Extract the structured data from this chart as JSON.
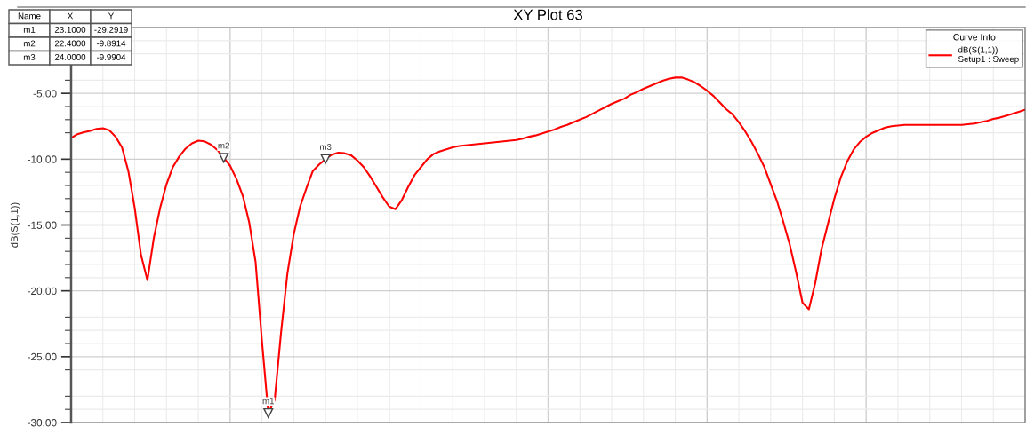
{
  "chart_data": {
    "type": "line",
    "title": "XY Plot 63",
    "ylabel": "dB(S(1,1))",
    "legend_title": "Curve Info",
    "categories": [
      null,
      null,
      null,
      null,
      null,
      null,
      null,
      null,
      null,
      null,
      null,
      null,
      null,
      null,
      null,
      null,
      null,
      null,
      null,
      null,
      null,
      null,
      null,
      null,
      null,
      null,
      null,
      null,
      null,
      null,
      null,
      null,
      null,
      null,
      null,
      null,
      null,
      null,
      null,
      null,
      null,
      null,
      null,
      null,
      null,
      null,
      null,
      null,
      null,
      null,
      null,
      null,
      null,
      null,
      null,
      null,
      null,
      null,
      null,
      null,
      null,
      null,
      null,
      null,
      null,
      null,
      null,
      null,
      null,
      null,
      null,
      null,
      null,
      null,
      null,
      null,
      null,
      null,
      null,
      null,
      null,
      null,
      null,
      null,
      null,
      null,
      null,
      null,
      null,
      null,
      null,
      null,
      null,
      null,
      null,
      null,
      null,
      null,
      null,
      null,
      null,
      null,
      null,
      null,
      null,
      null,
      null,
      null,
      null,
      null,
      null,
      null,
      null,
      null,
      null,
      null,
      null,
      null,
      null,
      null,
      null,
      null,
      null,
      null,
      null,
      null,
      null,
      null,
      null,
      null,
      null,
      null,
      null,
      null,
      null,
      null,
      null,
      null,
      null,
      null,
      null,
      null,
      null,
      null,
      null,
      null,
      null,
      null,
      null,
      null,
      null
    ],
    "ylim": [
      -30,
      0
    ],
    "yticks": [
      {
        "value": -30,
        "label": "-30.00"
      },
      {
        "value": -25,
        "label": "-25.00"
      },
      {
        "value": -20,
        "label": "-20.00"
      },
      {
        "value": -15,
        "label": "-15.00"
      },
      {
        "value": -10,
        "label": "-10.00"
      },
      {
        "value": -5,
        "label": "-5.00"
      }
    ],
    "tick_labels": "y",
    "grid": true,
    "legend": "top right",
    "marker": "none",
    "line_style": "solid",
    "series": [
      {
        "name": "dB(S(1,1))\nSetup1 : Sweep",
        "color": "#ff0000",
        "values": [
          -8.4,
          -8.1,
          -7.95,
          -7.85,
          -7.7,
          -7.65,
          -7.8,
          -8.3,
          -9.1,
          -10.9,
          -13.7,
          -17.3,
          -19.2,
          -16.0,
          -13.7,
          -11.9,
          -10.6,
          -9.8,
          -9.2,
          -8.8,
          -8.6,
          -8.65,
          -8.9,
          -9.3,
          -9.8914,
          -10.5,
          -11.5,
          -12.8,
          -14.8,
          -17.8,
          -23.8,
          -29.2919,
          -28.3,
          -23.2,
          -18.7,
          -15.7,
          -13.6,
          -12.2,
          -10.9,
          -10.4,
          -9.9904,
          -9.65,
          -9.5,
          -9.55,
          -9.7,
          -10.1,
          -10.6,
          -11.3,
          -12.1,
          -12.9,
          -13.6,
          -13.8,
          -13.1,
          -12.1,
          -11.2,
          -10.6,
          -10.0,
          -9.6,
          -9.4,
          -9.25,
          -9.1,
          -9.0,
          -8.95,
          -8.9,
          -8.85,
          -8.8,
          -8.75,
          -8.7,
          -8.65,
          -8.6,
          -8.55,
          -8.45,
          -8.3,
          -8.2,
          -8.05,
          -7.9,
          -7.75,
          -7.55,
          -7.4,
          -7.2,
          -7.0,
          -6.8,
          -6.55,
          -6.3,
          -6.05,
          -5.8,
          -5.6,
          -5.4,
          -5.1,
          -4.9,
          -4.65,
          -4.45,
          -4.25,
          -4.05,
          -3.9,
          -3.8,
          -3.8,
          -3.95,
          -4.15,
          -4.45,
          -4.8,
          -5.2,
          -5.7,
          -6.2,
          -6.6,
          -7.2,
          -7.9,
          -8.7,
          -9.6,
          -10.6,
          -11.9,
          -13.2,
          -14.8,
          -16.5,
          -18.6,
          -20.9,
          -21.4,
          -19.4,
          -16.8,
          -14.9,
          -13.0,
          -11.4,
          -10.2,
          -9.3,
          -8.7,
          -8.3,
          -8.0,
          -7.8,
          -7.6,
          -7.5,
          -7.45,
          -7.4,
          -7.4,
          -7.4,
          -7.4,
          -7.4,
          -7.4,
          -7.4,
          -7.4,
          -7.4,
          -7.4,
          -7.35,
          -7.3,
          -7.2,
          -7.1,
          -6.95,
          -6.85,
          -6.7,
          -6.55,
          -6.4,
          -6.25
        ]
      }
    ],
    "annotations": [
      {
        "text": "m1",
        "y": -29.2919
      },
      {
        "text": "m2",
        "y": -9.8914
      },
      {
        "text": "m3",
        "y": -9.9904
      },
      "Name",
      "X",
      "Y",
      "m1",
      "23.1000",
      "-29.2919",
      "m2",
      "22.4000",
      "-9.8914",
      "m3",
      "24.0000",
      "-9.9904"
    ]
  }
}
